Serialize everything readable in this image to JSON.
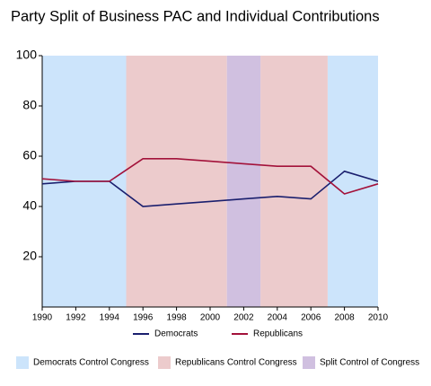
{
  "chart_data": {
    "type": "line",
    "title": "Party Split of Business PAC and Individual Contributions",
    "x": [
      1990,
      1992,
      1994,
      1996,
      1998,
      2000,
      2002,
      2004,
      2006,
      2008,
      2010
    ],
    "series": [
      {
        "name": "Democrats",
        "color": "#1a1f6e",
        "values": [
          49,
          50,
          50,
          40,
          41,
          42,
          43,
          44,
          43,
          54,
          50
        ]
      },
      {
        "name": "Republicans",
        "color": "#a3123a",
        "values": [
          51,
          50,
          50,
          59,
          59,
          58,
          57,
          56,
          56,
          45,
          49
        ]
      }
    ],
    "bands": [
      {
        "name": "Democrats Control Congress",
        "color": "#cce4fb",
        "spans": [
          [
            1990,
            1995
          ],
          [
            2007,
            2010
          ]
        ]
      },
      {
        "name": "Republicans Control Congress",
        "color": "#eccbcc",
        "spans": [
          [
            1995,
            2001
          ],
          [
            2003,
            2007
          ]
        ]
      },
      {
        "name": "Split Control of Congress",
        "color": "#d0c0e0",
        "spans": [
          [
            2001,
            2003
          ]
        ]
      }
    ],
    "xlim": [
      1990,
      2010
    ],
    "xticks": [
      1990,
      1992,
      1994,
      1996,
      1998,
      2000,
      2002,
      2004,
      2006,
      2008,
      2010
    ],
    "ylim": [
      0,
      100
    ],
    "yticks": [
      20,
      40,
      60,
      80,
      100
    ]
  }
}
